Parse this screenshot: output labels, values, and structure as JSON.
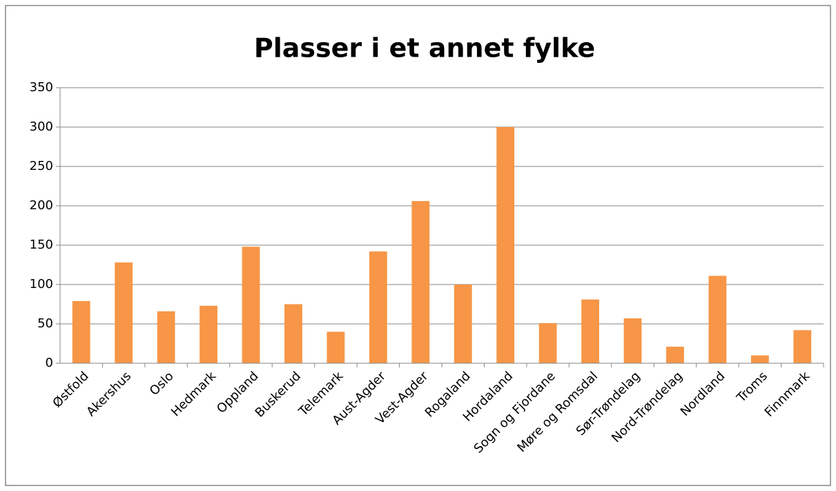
{
  "chart_data": {
    "type": "bar",
    "title": "Plasser i et annet fylke",
    "categories": [
      "Østfold",
      "Akershus",
      "Oslo",
      "Hedmark",
      "Oppland",
      "Buskerud",
      "Telemark",
      "Aust-Agder",
      "Vest-Agder",
      "Rogaland",
      "Hordaland",
      "Sogn og Fjordane",
      "Møre og Romsdal",
      "Sør-Trøndelag",
      "Nord-Trøndelag",
      "Nordland",
      "Troms",
      "Finnmark"
    ],
    "values": [
      79,
      128,
      66,
      73,
      148,
      75,
      40,
      142,
      206,
      100,
      300,
      51,
      81,
      57,
      21,
      111,
      10,
      42
    ],
    "color": "#f79646",
    "ylim": [
      0,
      350
    ],
    "yticks": [
      0,
      50,
      100,
      150,
      200,
      250,
      300,
      350
    ],
    "grid": true
  }
}
